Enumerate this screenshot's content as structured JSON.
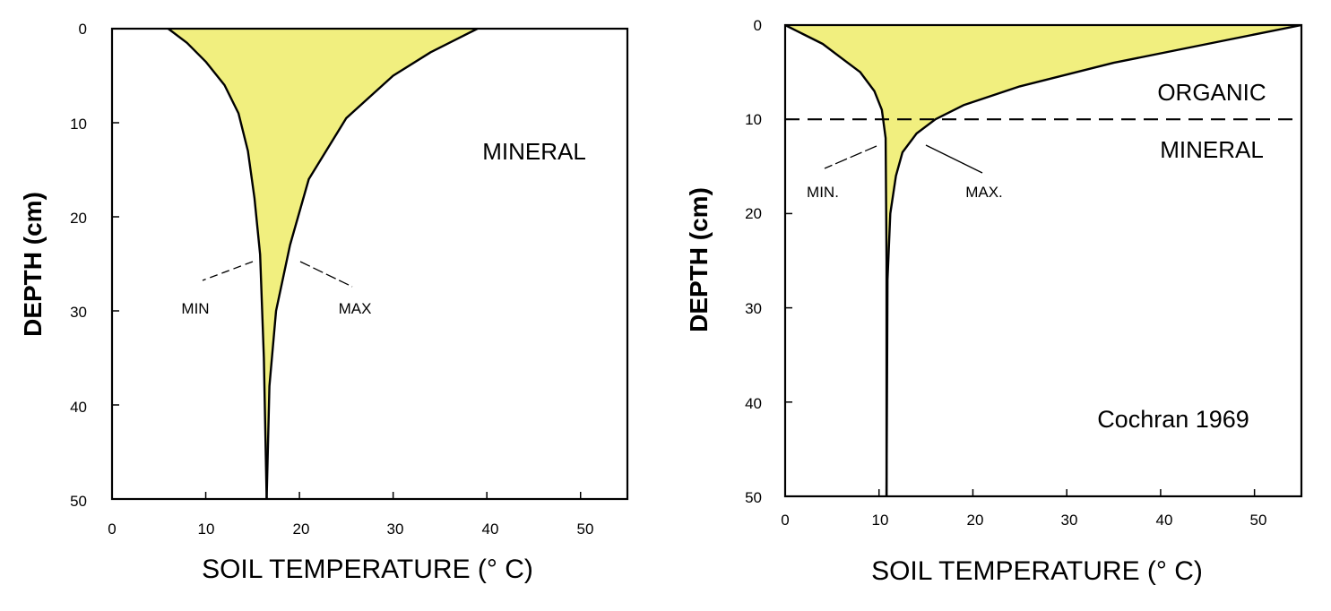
{
  "colors": {
    "fill": "#f1ef7f",
    "line": "#000000",
    "background": "#ffffff"
  },
  "chart_data": [
    {
      "type": "area",
      "xlabel": "SOIL TEMPERATURE (° C)",
      "ylabel": "DEPTH (cm)",
      "xlim": [
        0,
        55
      ],
      "ylim": [
        0,
        50
      ],
      "y_inverted": true,
      "xticks": [
        "0",
        "10",
        "20",
        "30",
        "40",
        "50"
      ],
      "yticks": [
        "0",
        "10",
        "20",
        "30",
        "40",
        "50"
      ],
      "grid": false,
      "region_labels": [
        "MINERAL"
      ],
      "series": [
        {
          "name": "MIN",
          "x": [
            6,
            8,
            10,
            12,
            13.5,
            14.5,
            15.2,
            15.8,
            16.2,
            16.5
          ],
          "y": [
            0,
            1.5,
            3.5,
            6,
            9,
            13,
            18,
            24,
            35,
            50
          ]
        },
        {
          "name": "MAX",
          "x": [
            39,
            34,
            30,
            25,
            21,
            19,
            17.5,
            16.8,
            16.5
          ],
          "y": [
            0,
            2.5,
            5,
            9.5,
            16,
            23,
            30,
            38,
            50
          ]
        }
      ]
    },
    {
      "type": "area",
      "xlabel": "SOIL TEMPERATURE (° C)",
      "ylabel": "DEPTH (cm)",
      "xlim": [
        0,
        55
      ],
      "ylim": [
        0,
        50
      ],
      "y_inverted": true,
      "xticks": [
        "0",
        "10",
        "20",
        "30",
        "40",
        "50"
      ],
      "yticks": [
        "0",
        "10",
        "20",
        "30",
        "40",
        "50"
      ],
      "grid": false,
      "boundary_depth": 10,
      "region_labels": [
        "ORGANIC",
        "MINERAL"
      ],
      "credit": "Cochran 1969",
      "series": [
        {
          "name": "MIN.",
          "x": [
            0,
            2,
            4,
            6,
            8,
            9.5,
            10.3,
            10.7,
            10.8,
            10.8
          ],
          "y": [
            0,
            1,
            2,
            3.5,
            5,
            7,
            9,
            12,
            25,
            50
          ]
        },
        {
          "name": "MAX.",
          "x": [
            55,
            45,
            35,
            25,
            19,
            16,
            14,
            12.5,
            11.8,
            11.2,
            10.9,
            10.8
          ],
          "y": [
            0,
            2,
            4,
            6.5,
            8.5,
            10,
            11.5,
            13.5,
            16,
            20,
            27,
            50
          ]
        }
      ]
    }
  ]
}
